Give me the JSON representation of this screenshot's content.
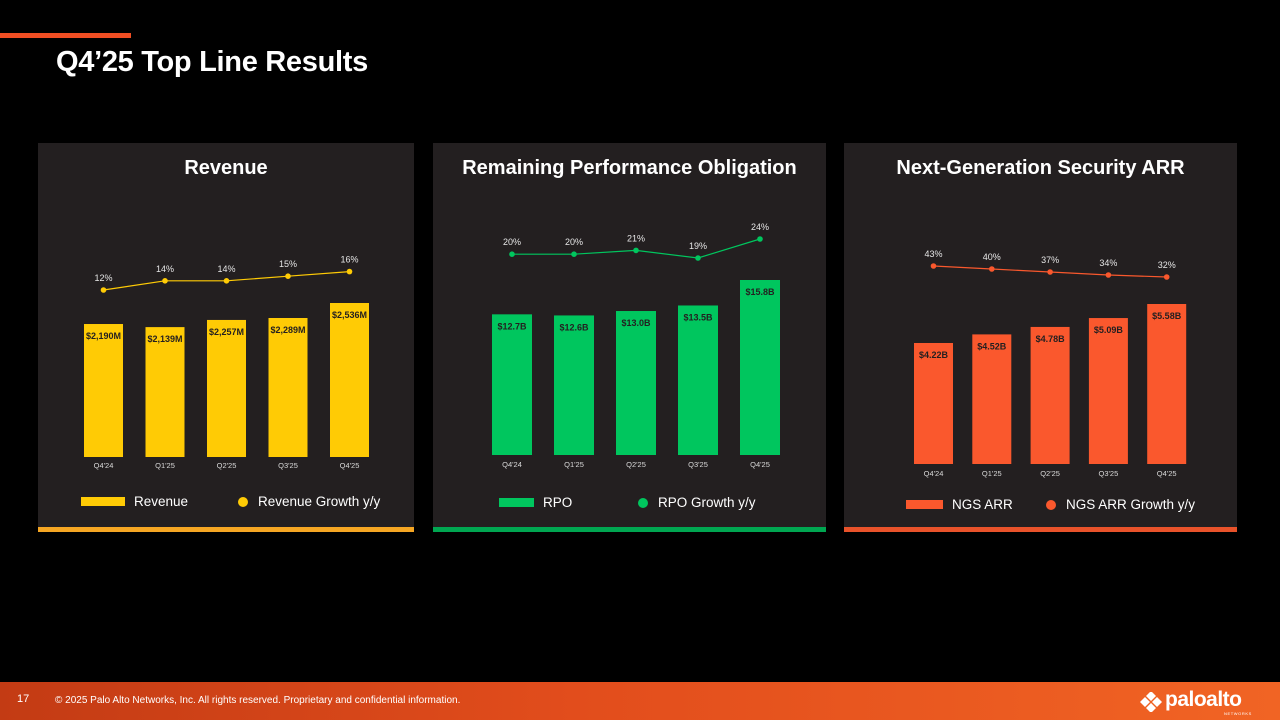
{
  "slide": {
    "title": "Q4’25 Top Line Results",
    "accent_color": "#f04e23"
  },
  "footer": {
    "page_number": "17",
    "copyright": "© 2025 Palo Alto Networks, Inc. All rights reserved. Proprietary and confidential information.",
    "logo_text": "paloalto",
    "logo_subtext": "NETWORKS"
  },
  "chart_data": [
    {
      "type": "bar",
      "title": "Revenue",
      "categories": [
        "Q4'24",
        "Q1'25",
        "Q2'25",
        "Q3'25",
        "Q4'25"
      ],
      "series": [
        {
          "name": "Revenue",
          "values": [
            2190,
            2139,
            2257,
            2289,
            2536
          ],
          "labels": [
            "$2,190M",
            "$2,139M",
            "$2,257M",
            "$2,289M",
            "$2,536M"
          ],
          "color": "#ffcb05"
        },
        {
          "name": "Revenue Growth y/y",
          "values": [
            12,
            14,
            14,
            15,
            16
          ],
          "labels": [
            "12%",
            "14%",
            "14%",
            "15%",
            "16%"
          ],
          "color": "#ffcb05",
          "kind": "line"
        }
      ],
      "stripe_color": "#f5a623",
      "legend_placement": "bottom"
    },
    {
      "type": "bar",
      "title": "Remaining Performance Obligation",
      "categories": [
        "Q4'24",
        "Q1'25",
        "Q2'25",
        "Q3'25",
        "Q4'25"
      ],
      "series": [
        {
          "name": "RPO",
          "values": [
            12.7,
            12.6,
            13.0,
            13.5,
            15.8
          ],
          "labels": [
            "$12.7B",
            "$12.6B",
            "$13.0B",
            "$13.5B",
            "$15.8B"
          ],
          "color": "#00c65e"
        },
        {
          "name": "RPO Growth y/y",
          "values": [
            20,
            20,
            21,
            19,
            24
          ],
          "labels": [
            "20%",
            "20%",
            "21%",
            "19%",
            "24%"
          ],
          "color": "#00c65e",
          "kind": "line"
        }
      ],
      "stripe_color": "#00a651",
      "legend_placement": "bottom"
    },
    {
      "type": "bar",
      "title": "Next-Generation Security ARR",
      "categories": [
        "Q4'24",
        "Q1'25",
        "Q2'25",
        "Q3'25",
        "Q4'25"
      ],
      "series": [
        {
          "name": "NGS ARR",
          "values": [
            4.22,
            4.52,
            4.78,
            5.09,
            5.58
          ],
          "labels": [
            "$4.22B",
            "$4.52B",
            "$4.78B",
            "$5.09B",
            "$5.58B"
          ],
          "color": "#fa582d"
        },
        {
          "name": "NGS ARR Growth y/y",
          "values": [
            43,
            40,
            37,
            34,
            32
          ],
          "labels": [
            "43%",
            "40%",
            "37%",
            "34%",
            "32%"
          ],
          "color": "#fa582d",
          "kind": "line"
        }
      ],
      "stripe_color": "#e8522a",
      "legend_placement": "bottom"
    }
  ]
}
